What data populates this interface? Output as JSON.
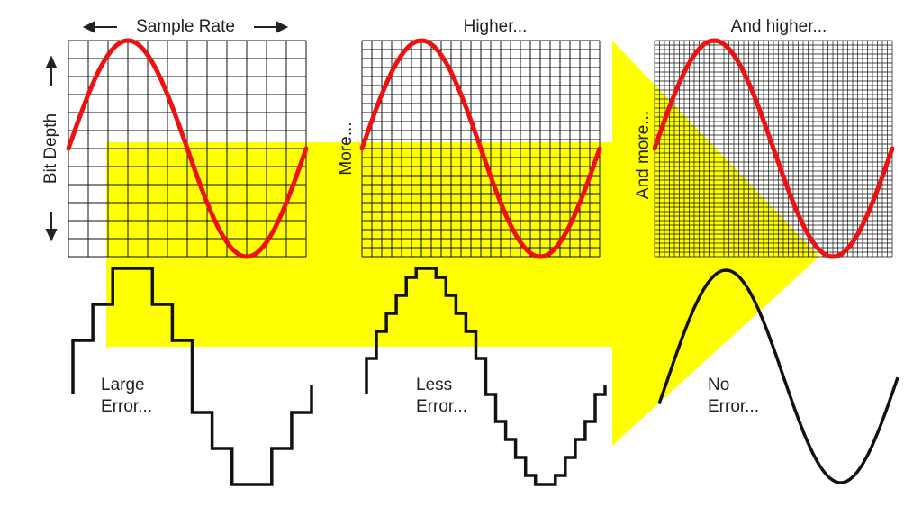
{
  "panels": [
    {
      "title": "Sample Rate",
      "side_label": "Bit Depth",
      "error_lines": [
        "Large",
        "Error..."
      ]
    },
    {
      "title": "Higher...",
      "side_label": "More...",
      "error_lines": [
        "Less",
        "Error..."
      ]
    },
    {
      "title": "And higher...",
      "side_label": "And more...",
      "error_lines": [
        "No",
        "Error..."
      ]
    }
  ]
}
